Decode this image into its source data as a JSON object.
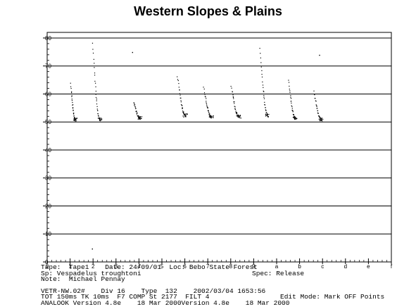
{
  "title": "Western Slopes & Plains",
  "chart_data": {
    "type": "scatter",
    "title": "Western Slopes & Plains",
    "xlabel": "",
    "ylabel": "",
    "ylim": [
      0,
      82
    ],
    "y_ticks": [
      "0",
      "10",
      "20",
      "30",
      "40",
      "50",
      "60",
      "70",
      "80"
    ],
    "x_ticks": [
      "0",
      "1",
      "2",
      "3",
      "4",
      "5",
      "6",
      "7",
      "8",
      "9",
      "a",
      "b",
      "c",
      "d",
      "e",
      "f"
    ],
    "horizontal_grid": true,
    "pulses": [
      {
        "start_index": 1.0,
        "end_index": 1.22,
        "top_kHz": 64.0,
        "end_kHz": 51.0
      },
      {
        "start_index": 1.95,
        "end_index": 2.3,
        "top_kHz": 78.5,
        "end_kHz": 51.0
      },
      {
        "start_index": 3.75,
        "end_index": 4.05,
        "top_kHz": 57.0,
        "end_kHz": 51.5
      },
      {
        "start_index": 5.65,
        "end_index": 6.02,
        "top_kHz": 66.5,
        "end_kHz": 52.5
      },
      {
        "start_index": 6.8,
        "end_index": 7.15,
        "top_kHz": 62.5,
        "end_kHz": 52.0
      },
      {
        "start_index": 8.0,
        "end_index": 8.35,
        "top_kHz": 63.0,
        "end_kHz": 52.0
      },
      {
        "start_index": 9.25,
        "end_index": 9.6,
        "top_kHz": 76.5,
        "end_kHz": 52.5
      },
      {
        "start_index": 10.5,
        "end_index": 10.8,
        "top_kHz": 65.0,
        "end_kHz": 51.5
      },
      {
        "start_index": 11.6,
        "end_index": 11.95,
        "top_kHz": 61.0,
        "end_kHz": 51.0
      }
    ],
    "isolated_points": [
      {
        "x_index": 3.7,
        "y_kHz": 75.0
      },
      {
        "x_index": 1.95,
        "y_kHz": 4.8
      },
      {
        "x_index": 11.85,
        "y_kHz": 74.0
      }
    ]
  },
  "footer": {
    "line1_left": "Tape:  Tape1    Date: 24/09/01  Loc: Bebo State Forest",
    "line2_left": "Sp: Vespadelus troughtoni",
    "line2_right": "Spec: Release",
    "line3_left": "Note:  Michael Pennay",
    "line4_left": "VETR-NW.02#    Div 16    Type  132    2002/03/04 1653:56",
    "line5_left": "TOT 150ms TK 10ms  F7 COMP St 2177  FILT 4",
    "line5_right": "Edit Mode: Mark OFF Points",
    "line6_left": "ANALOOK Version 4.8e    18 Mar 2000Version 4.8e    18 Mar 2000"
  }
}
